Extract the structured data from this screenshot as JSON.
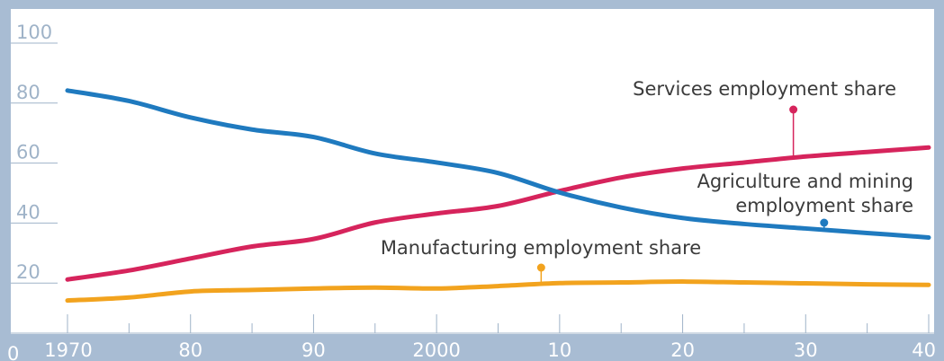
{
  "colors": {
    "frame": "#a8bcd3",
    "background": "#ffffff",
    "grid": "#9fb3c8",
    "tick_text_y": "#9fb3c8",
    "tick_text_x": "#ffffff",
    "annotation_text": "#3b3b3b"
  },
  "chart_data": {
    "type": "line",
    "title": "",
    "xlabel": "",
    "ylabel": "",
    "xlim": [
      1970,
      2040
    ],
    "ylim": [
      0,
      100
    ],
    "grid": "horizontal",
    "legend": "none",
    "y_ticks": [
      {
        "value": 0,
        "label": "0"
      },
      {
        "value": 20,
        "label": "20"
      },
      {
        "value": 40,
        "label": "40"
      },
      {
        "value": 60,
        "label": "60"
      },
      {
        "value": 80,
        "label": "80"
      },
      {
        "value": 100,
        "label": "100"
      }
    ],
    "x_ticks": [
      {
        "value": 1970,
        "label": "1970"
      },
      {
        "value": 1980,
        "label": "80"
      },
      {
        "value": 1990,
        "label": "90"
      },
      {
        "value": 2000,
        "label": "2000"
      },
      {
        "value": 2010,
        "label": "10"
      },
      {
        "value": 2020,
        "label": "20"
      },
      {
        "value": 2030,
        "label": "30"
      },
      {
        "value": 2040,
        "label": "40"
      }
    ],
    "x": [
      1970,
      1975,
      1980,
      1985,
      1990,
      1995,
      2000,
      2005,
      2010,
      2015,
      2020,
      2025,
      2030,
      2035,
      2040
    ],
    "series": [
      {
        "name": "Services employment share",
        "color": "#d6245c",
        "values": [
          17,
          20,
          24,
          28,
          30.5,
          36,
          39,
          41.5,
          46.5,
          51,
          54,
          56,
          58,
          59.5,
          61
        ],
        "annotation": {
          "x": 2029,
          "y": 57,
          "label": [
            "Services employment share"
          ],
          "label_anchor": "end"
        }
      },
      {
        "name": "Agriculture and mining employment share",
        "color": "#1f7abf",
        "values": [
          80,
          76.5,
          71,
          67,
          64.5,
          59,
          56,
          52.5,
          46,
          41,
          37.5,
          35.5,
          34,
          32.5,
          31
        ],
        "annotation": {
          "x": 2031.5,
          "y": 33.5,
          "label": [
            "Agriculture and mining",
            "employment share"
          ],
          "label_anchor": "end"
        }
      },
      {
        "name": "Manufacturing employment share",
        "color": "#f2a31e",
        "values": [
          10,
          11,
          13,
          13.5,
          14,
          14.3,
          14,
          14.8,
          15.8,
          16,
          16.3,
          16,
          15.7,
          15.4,
          15.2
        ],
        "annotation": {
          "x": 2008.5,
          "y": 15.2,
          "label": [
            "Manufacturing employment share"
          ],
          "label_anchor": "middle"
        }
      }
    ]
  }
}
